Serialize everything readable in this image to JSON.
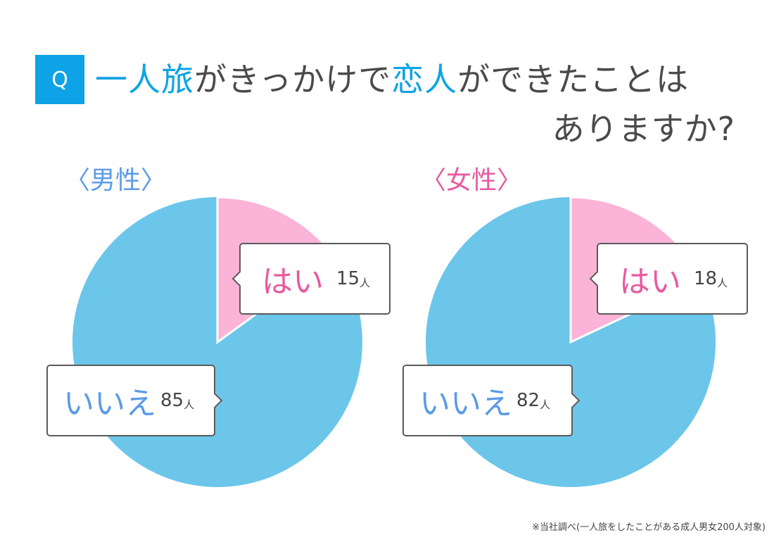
{
  "question": {
    "badge": "Q",
    "line1_parts": [
      "一人旅",
      "がきっかけで",
      "恋人",
      "ができたことは"
    ],
    "line2": "ありますか?"
  },
  "colors": {
    "accent_blue": "#0da3e6",
    "pie_no": "#6bc6ea",
    "pie_yes": "#fbb3d8",
    "male_label": "#5b9be6",
    "female_label": "#e85aa0"
  },
  "charts": {
    "male": {
      "label": "〈男性〉",
      "yes": {
        "label": "はい",
        "count": "15",
        "unit": "人"
      },
      "no": {
        "label": "いいえ",
        "count": "85",
        "unit": "人"
      }
    },
    "female": {
      "label": "〈女性〉",
      "yes": {
        "label": "はい",
        "count": "18",
        "unit": "人"
      },
      "no": {
        "label": "いいえ",
        "count": "82",
        "unit": "人"
      }
    }
  },
  "footnote": "※当社調べ(一人旅をしたことがある成人男女200人対象)",
  "chart_data": [
    {
      "type": "pie",
      "title": "男性",
      "categories": [
        "はい",
        "いいえ"
      ],
      "values": [
        15,
        85
      ],
      "unit": "人",
      "colors": [
        "#fbb3d8",
        "#6bc6ea"
      ]
    },
    {
      "type": "pie",
      "title": "女性",
      "categories": [
        "はい",
        "いいえ"
      ],
      "values": [
        18,
        82
      ],
      "unit": "人",
      "colors": [
        "#fbb3d8",
        "#6bc6ea"
      ]
    }
  ]
}
